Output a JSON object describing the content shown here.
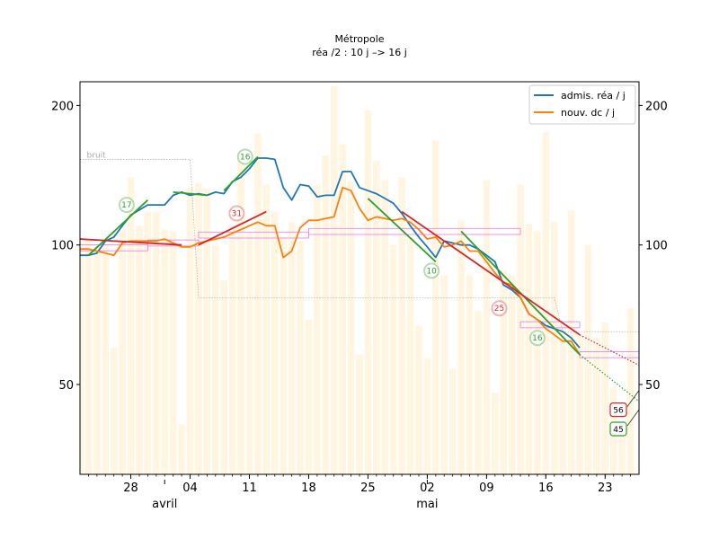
{
  "chart_data": {
    "type": "line",
    "title": "Métropole",
    "subtitle": "réa /2 : 10 j –> 16 j",
    "y_ticks": [
      50,
      100,
      200
    ],
    "y_tick_labels": [
      "50",
      "100",
      "200"
    ],
    "y_scale": "log",
    "ylim": [
      32,
      225
    ],
    "xlim": [
      0,
      66
    ],
    "x_tick_labels": [
      {
        "day": 6,
        "label": "28"
      },
      {
        "day": 13,
        "label": "04"
      },
      {
        "day": 20,
        "label": "11"
      },
      {
        "day": 27,
        "label": "18"
      },
      {
        "day": 34,
        "label": "25"
      },
      {
        "day": 41,
        "label": "02"
      },
      {
        "day": 48,
        "label": "09"
      },
      {
        "day": 55,
        "label": "16"
      },
      {
        "day": 62,
        "label": "23"
      }
    ],
    "month_labels": [
      {
        "day": 10,
        "label": "avril"
      },
      {
        "day": 41,
        "label": "mai"
      }
    ],
    "month_markers": [
      10,
      41
    ],
    "legend": {
      "position": "top-right",
      "entries": [
        {
          "label": "admis. réa / j",
          "color": "#1f77b4"
        },
        {
          "label": "nouv. dc / j",
          "color": "#ff7f0e"
        }
      ]
    },
    "colors": {
      "rea": "#1f77b4",
      "dc": "#ff7f0e",
      "fit_green": "#2ca02c",
      "fit_red": "#d62728",
      "bars": "#fff5e0",
      "box": "#e57ee5",
      "noise": "#aaaaaa"
    },
    "noise_label": "bruit",
    "series": [
      {
        "name": "admis. réa / j",
        "x": [
          0,
          1,
          2,
          3,
          4,
          5,
          6,
          7,
          8,
          9,
          10,
          11,
          12,
          13,
          14,
          15,
          16,
          17,
          18,
          19,
          20,
          21,
          22,
          23,
          24,
          25,
          26,
          27,
          28,
          29,
          30,
          31,
          32,
          33,
          34,
          35,
          36,
          37,
          38,
          39,
          40,
          41,
          42,
          43,
          44,
          45,
          46,
          47,
          48,
          49,
          50,
          51,
          52,
          53,
          54,
          55,
          56,
          57,
          58,
          59
        ],
        "values": [
          95,
          95,
          96,
          102,
          104,
          110,
          116,
          119,
          122,
          122,
          122,
          128,
          130,
          128,
          129,
          128,
          130,
          129,
          137,
          140,
          146,
          154,
          154,
          153,
          133,
          125,
          135,
          134,
          127,
          128,
          128,
          144,
          144,
          133,
          131,
          129,
          126,
          123,
          117,
          110,
          104,
          99,
          94,
          102,
          101,
          100,
          100,
          98,
          95,
          92,
          82,
          80,
          77,
          71,
          69,
          67,
          66,
          65,
          63,
          60
        ]
      },
      {
        "name": "nouv. dc / j",
        "x": [
          0,
          1,
          2,
          3,
          4,
          5,
          6,
          7,
          8,
          9,
          10,
          11,
          12,
          13,
          14,
          15,
          16,
          17,
          18,
          19,
          20,
          21,
          22,
          23,
          24,
          25,
          26,
          27,
          28,
          29,
          30,
          31,
          32,
          33,
          34,
          35,
          36,
          37,
          38,
          39,
          40,
          41,
          42,
          43,
          44,
          45,
          46,
          47,
          48,
          49,
          50,
          51,
          52,
          53,
          54,
          55,
          56,
          57,
          58,
          59
        ],
        "values": [
          98,
          98,
          97,
          96,
          95,
          101,
          102,
          102,
          102,
          102,
          103,
          101,
          99,
          99,
          101,
          102,
          103,
          104,
          106,
          108,
          110,
          112,
          110,
          110,
          94,
          97,
          109,
          113,
          113,
          114,
          115,
          133,
          131,
          120,
          113,
          115,
          114,
          113,
          114,
          112,
          108,
          103,
          104,
          99,
          100,
          102,
          97,
          97,
          92,
          87,
          83,
          82,
          77,
          71,
          69,
          66,
          64,
          62,
          62,
          58
        ]
      }
    ],
    "fits": [
      {
        "color": "green",
        "style": "solid",
        "x": [
          1,
          8
        ],
        "values": [
          95,
          125
        ]
      },
      {
        "color": "green",
        "style": "solid",
        "x": [
          11,
          15
        ],
        "values": [
          130,
          128
        ]
      },
      {
        "color": "green",
        "style": "solid",
        "x": [
          17,
          21
        ],
        "values": [
          131,
          155
        ]
      },
      {
        "color": "green",
        "style": "solid",
        "x": [
          34,
          42
        ],
        "values": [
          126,
          92
        ]
      },
      {
        "color": "green",
        "style": "solid",
        "x": [
          45,
          59
        ],
        "values": [
          107,
          58
        ]
      },
      {
        "color": "green",
        "style": "dotted",
        "x": [
          59,
          66
        ],
        "values": [
          58,
          46
        ]
      },
      {
        "color": "red",
        "style": "solid",
        "x": [
          0,
          12
        ],
        "values": [
          103,
          100
        ]
      },
      {
        "color": "red",
        "style": "solid",
        "x": [
          14,
          22
        ],
        "values": [
          100,
          118
        ]
      },
      {
        "color": "red",
        "style": "solid",
        "x": [
          38,
          59
        ],
        "values": [
          118,
          64
        ]
      },
      {
        "color": "red",
        "style": "dotted",
        "x": [
          59,
          66
        ],
        "values": [
          64,
          55
        ]
      }
    ],
    "doubling_labels": [
      {
        "text": "17",
        "color": "green",
        "x": 5.5,
        "y": 122
      },
      {
        "text": "16",
        "color": "green",
        "x": 19.5,
        "y": 155
      },
      {
        "text": "31",
        "color": "red",
        "x": 18.5,
        "y": 117
      },
      {
        "text": "10",
        "color": "green",
        "x": 41.5,
        "y": 88
      },
      {
        "text": "25",
        "color": "red",
        "x": 49.5,
        "y": 73
      },
      {
        "text": "16",
        "color": "green",
        "x": 54,
        "y": 63
      }
    ],
    "end_labels": [
      {
        "text": "56",
        "color": "red",
        "y": 44
      },
      {
        "text": "45",
        "color": "green",
        "y": 40
      }
    ],
    "bars": [
      101,
      103,
      99,
      100,
      60,
      108,
      140,
      110,
      118,
      118,
      108,
      107,
      41,
      133,
      136,
      132,
      100,
      84,
      110,
      158,
      106,
      174,
      135,
      118,
      104,
      112,
      102,
      69,
      135,
      156,
      220,
      165,
      137,
      58,
      195,
      152,
      138,
      100,
      140,
      104,
      67,
      57,
      168,
      86,
      54,
      113,
      86,
      72,
      138,
      48,
      88,
      86,
      135,
      111,
      107,
      175,
      112,
      67,
      119,
      64,
      100,
      63,
      68,
      49,
      40,
      73
    ]
  }
}
